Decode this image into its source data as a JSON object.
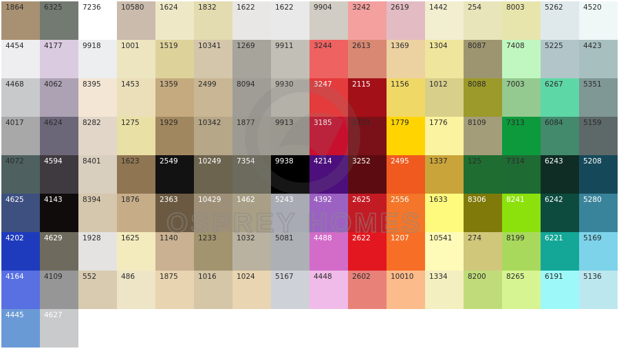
{
  "watermark": {
    "text": "OSPREY HOMES"
  },
  "rows": [
    [
      {
        "code": "1864",
        "color": "#a89072",
        "tone": "light"
      },
      {
        "code": "6325",
        "color": "#737a72",
        "tone": "light"
      },
      {
        "code": "7236",
        "color": "#ffffff",
        "tone": "light"
      },
      {
        "code": "10580",
        "color": "#cbbbad",
        "tone": "light"
      },
      {
        "code": "1624",
        "color": "#eee8c7",
        "tone": "light"
      },
      {
        "code": "1832",
        "color": "#e3dcb0",
        "tone": "light"
      },
      {
        "code": "1622",
        "color": "#e8e7e6",
        "tone": "light"
      },
      {
        "code": "1622",
        "color": "#e9e9e9",
        "tone": "light"
      },
      {
        "code": "9904",
        "color": "#d2cdc4",
        "tone": "light"
      },
      {
        "code": "3242",
        "color": "#f3a09f",
        "tone": "light"
      },
      {
        "code": "2619",
        "color": "#e2bcc2",
        "tone": "light"
      },
      {
        "code": "1442",
        "color": "#f2eed0",
        "tone": "light"
      },
      {
        "code": "254",
        "color": "#e9e5bb",
        "tone": "light"
      },
      {
        "code": "8003",
        "color": "#e8e5ac",
        "tone": "light"
      },
      {
        "code": "5262",
        "color": "#dfe9ec",
        "tone": "light"
      },
      {
        "code": "4520",
        "color": "#f0f7f7",
        "tone": "light"
      }
    ],
    [
      {
        "code": "4454",
        "color": "#eeeef1",
        "tone": "light"
      },
      {
        "code": "4177",
        "color": "#dbcbe0",
        "tone": "light"
      },
      {
        "code": "9918",
        "color": "#eceef0",
        "tone": "light"
      },
      {
        "code": "1001",
        "color": "#ece5bf",
        "tone": "light"
      },
      {
        "code": "1519",
        "color": "#ded29b",
        "tone": "light"
      },
      {
        "code": "10341",
        "color": "#d4c6ab",
        "tone": "light"
      },
      {
        "code": "1269",
        "color": "#a7a49c",
        "tone": "light"
      },
      {
        "code": "9911",
        "color": "#c2bfb6",
        "tone": "light"
      },
      {
        "code": "3244",
        "color": "#ee6261",
        "tone": "light"
      },
      {
        "code": "2613",
        "color": "#d98873",
        "tone": "light"
      },
      {
        "code": "1369",
        "color": "#ecd1a1",
        "tone": "light"
      },
      {
        "code": "1304",
        "color": "#efe59c",
        "tone": "light"
      },
      {
        "code": "8087",
        "color": "#9d9570",
        "tone": "light"
      },
      {
        "code": "7408",
        "color": "#c0f7c0",
        "tone": "light"
      },
      {
        "code": "5225",
        "color": "#b2c6ca",
        "tone": "light"
      },
      {
        "code": "4423",
        "color": "#a8bfbf",
        "tone": "light"
      }
    ],
    [
      {
        "code": "4468",
        "color": "#c8c9cb",
        "tone": "light"
      },
      {
        "code": "4062",
        "color": "#ada2b4",
        "tone": "light"
      },
      {
        "code": "8395",
        "color": "#f3e6d4",
        "tone": "light"
      },
      {
        "code": "1453",
        "color": "#ebdfb9",
        "tone": "light"
      },
      {
        "code": "1359",
        "color": "#c5a97f",
        "tone": "light"
      },
      {
        "code": "2499",
        "color": "#c8b694",
        "tone": "light"
      },
      {
        "code": "8094",
        "color": "#a09d97",
        "tone": "light"
      },
      {
        "code": "9930",
        "color": "#b4b1a9",
        "tone": "light"
      },
      {
        "code": "3247",
        "color": "#e43b3c",
        "tone": "dark"
      },
      {
        "code": "2115",
        "color": "#a41018",
        "tone": "dark"
      },
      {
        "code": "1156",
        "color": "#f0d867",
        "tone": "light"
      },
      {
        "code": "1012",
        "color": "#d7cf8a",
        "tone": "light"
      },
      {
        "code": "8088",
        "color": "#9c9a2a",
        "tone": "light"
      },
      {
        "code": "7003",
        "color": "#94c98f",
        "tone": "light"
      },
      {
        "code": "6267",
        "color": "#5ed7a6",
        "tone": "light"
      },
      {
        "code": "5351",
        "color": "#7f9795",
        "tone": "light"
      }
    ],
    [
      {
        "code": "4017",
        "color": "#a8a8a8",
        "tone": "light"
      },
      {
        "code": "4624",
        "color": "#6c6778",
        "tone": "light"
      },
      {
        "code": "8282",
        "color": "#e1d6c8",
        "tone": "light"
      },
      {
        "code": "1275",
        "color": "#e9e0a6",
        "tone": "light"
      },
      {
        "code": "1929",
        "color": "#a1875f",
        "tone": "light"
      },
      {
        "code": "10342",
        "color": "#b6a788",
        "tone": "light"
      },
      {
        "code": "1877",
        "color": "#9d9a91",
        "tone": "light"
      },
      {
        "code": "9913",
        "color": "#9b988f",
        "tone": "light"
      },
      {
        "code": "3185",
        "color": "#c8102e",
        "tone": "dark"
      },
      {
        "code": "2731",
        "color": "#7a1018",
        "tone": "light"
      },
      {
        "code": "1779",
        "color": "#ffd400",
        "tone": "light"
      },
      {
        "code": "1776",
        "color": "#fbf3a0",
        "tone": "light"
      },
      {
        "code": "8109",
        "color": "#a39d7a",
        "tone": "light"
      },
      {
        "code": "7313",
        "color": "#0c9a3c",
        "tone": "light"
      },
      {
        "code": "6084",
        "color": "#438a6d",
        "tone": "light"
      },
      {
        "code": "5159",
        "color": "#5d6868",
        "tone": "light"
      }
    ],
    [
      {
        "code": "4072",
        "color": "#4e6060",
        "tone": "light"
      },
      {
        "code": "4594",
        "color": "#3f3a3f",
        "tone": "dark"
      },
      {
        "code": "8401",
        "color": "#d9cfbf",
        "tone": "light"
      },
      {
        "code": "1623",
        "color": "#8f7552",
        "tone": "light"
      },
      {
        "code": "2549",
        "color": "#121212",
        "tone": "dark"
      },
      {
        "code": "10249",
        "color": "#6d6450",
        "tone": "dark"
      },
      {
        "code": "7354",
        "color": "#6c6b5d",
        "tone": "dark"
      },
      {
        "code": "9938",
        "color": "#000000",
        "tone": "dark"
      },
      {
        "code": "4214",
        "color": "#4c0f7c",
        "tone": "dark"
      },
      {
        "code": "3252",
        "color": "#5c0c10",
        "tone": "dark"
      },
      {
        "code": "2495",
        "color": "#f05a1e",
        "tone": "dark"
      },
      {
        "code": "1337",
        "color": "#c9a43a",
        "tone": "light"
      },
      {
        "code": "125",
        "color": "#1f6d31",
        "tone": "light"
      },
      {
        "code": "7314",
        "color": "#1f6b34",
        "tone": "light"
      },
      {
        "code": "6243",
        "color": "#0f2d24",
        "tone": "dark"
      },
      {
        "code": "5208",
        "color": "#154959",
        "tone": "dark"
      }
    ],
    [
      {
        "code": "4625",
        "color": "#3d5080",
        "tone": "dark"
      },
      {
        "code": "4143",
        "color": "#100c0c",
        "tone": "dark"
      },
      {
        "code": "8394",
        "color": "#d5c7ad",
        "tone": "light"
      },
      {
        "code": "1876",
        "color": "#c6ad88",
        "tone": "light"
      },
      {
        "code": "2363",
        "color": "#6b5a41",
        "tone": "dark"
      },
      {
        "code": "10429",
        "color": "#9e9078",
        "tone": "dark"
      },
      {
        "code": "1462",
        "color": "#a89f86",
        "tone": "dark"
      },
      {
        "code": "5243",
        "color": "#a8abb3",
        "tone": "dark"
      },
      {
        "code": "4392",
        "color": "#9b62c2",
        "tone": "dark"
      },
      {
        "code": "2625",
        "color": "#c31b24",
        "tone": "dark"
      },
      {
        "code": "2556",
        "color": "#f3762a",
        "tone": "dark"
      },
      {
        "code": "1633",
        "color": "#fdfa7e",
        "tone": "light"
      },
      {
        "code": "8306",
        "color": "#7f7a09",
        "tone": "dark"
      },
      {
        "code": "8241",
        "color": "#8ce10d",
        "tone": "dark"
      },
      {
        "code": "6242",
        "color": "#0d4b3f",
        "tone": "dark"
      },
      {
        "code": "5280",
        "color": "#3a849b",
        "tone": "dark"
      }
    ],
    [
      {
        "code": "4202",
        "color": "#1f3bbd",
        "tone": "dark"
      },
      {
        "code": "4629",
        "color": "#6e6b5e",
        "tone": "dark"
      },
      {
        "code": "1928",
        "color": "#e4e3e2",
        "tone": "light"
      },
      {
        "code": "1625",
        "color": "#f3ebbd",
        "tone": "light"
      },
      {
        "code": "1140",
        "color": "#c9b191",
        "tone": "light"
      },
      {
        "code": "1233",
        "color": "#a1946e",
        "tone": "light"
      },
      {
        "code": "1032",
        "color": "#b9b2a0",
        "tone": "light"
      },
      {
        "code": "5081",
        "color": "#adb0b5",
        "tone": "light"
      },
      {
        "code": "4488",
        "color": "#d36cc9",
        "tone": "dark"
      },
      {
        "code": "2622",
        "color": "#e3171f",
        "tone": "dark"
      },
      {
        "code": "1207",
        "color": "#f76f26",
        "tone": "dark"
      },
      {
        "code": "10541",
        "color": "#fefab8",
        "tone": "light"
      },
      {
        "code": "274",
        "color": "#d0c77a",
        "tone": "light"
      },
      {
        "code": "8199",
        "color": "#a9d95c",
        "tone": "light"
      },
      {
        "code": "6221",
        "color": "#14a797",
        "tone": "dark"
      },
      {
        "code": "5169",
        "color": "#7dd3ea",
        "tone": "light"
      }
    ],
    [
      {
        "code": "4164",
        "color": "#5870e2",
        "tone": "dark"
      },
      {
        "code": "4109",
        "color": "#969697",
        "tone": "light"
      },
      {
        "code": "552",
        "color": "#d8cbb0",
        "tone": "light"
      },
      {
        "code": "486",
        "color": "#eee5c6",
        "tone": "light"
      },
      {
        "code": "1875",
        "color": "#e9d4b1",
        "tone": "light"
      },
      {
        "code": "1016",
        "color": "#d4c6a7",
        "tone": "light"
      },
      {
        "code": "1024",
        "color": "#e9d5b1",
        "tone": "light"
      },
      {
        "code": "5167",
        "color": "#ced2d8",
        "tone": "light"
      },
      {
        "code": "4448",
        "color": "#f0bbe8",
        "tone": "light"
      },
      {
        "code": "2602",
        "color": "#e88279",
        "tone": "light"
      },
      {
        "code": "10010",
        "color": "#fbbb8a",
        "tone": "light"
      },
      {
        "code": "1334",
        "color": "#f3efc0",
        "tone": "light"
      },
      {
        "code": "8200",
        "color": "#c0dc7a",
        "tone": "light"
      },
      {
        "code": "8265",
        "color": "#d6f592",
        "tone": "light"
      },
      {
        "code": "6191",
        "color": "#9df8f9",
        "tone": "light"
      },
      {
        "code": "5136",
        "color": "#bde7ef",
        "tone": "light"
      }
    ],
    [
      {
        "code": "4445",
        "color": "#6a9ad5",
        "tone": "dark"
      },
      {
        "code": "4627",
        "color": "#c9cacc",
        "tone": "dark"
      }
    ]
  ]
}
